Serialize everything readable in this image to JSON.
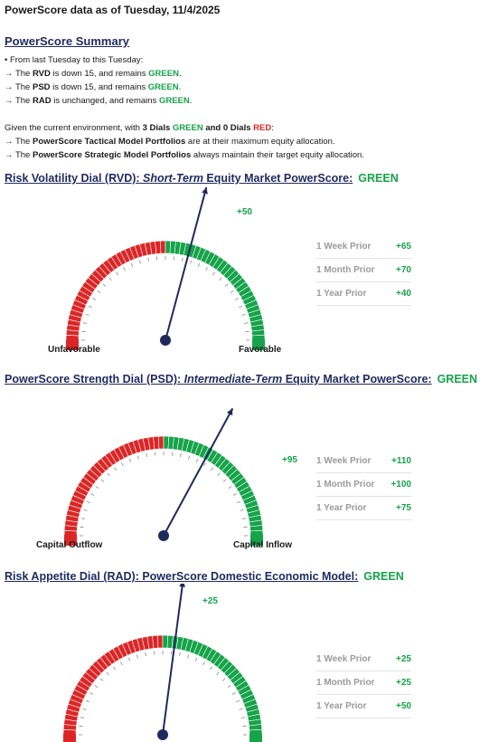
{
  "header": {
    "title": "PowerScore data as of Tuesday, 11/4/2025"
  },
  "summary": {
    "title": "PowerScore Summary",
    "bullet": "• From last Tuesday to this Tuesday:",
    "changes": [
      {
        "pre": "→ The ",
        "dial": "RVD",
        "mid": " is down 15, and remains ",
        "status": "GREEN",
        "post": "."
      },
      {
        "pre": "→ The ",
        "dial": "PSD",
        "mid": " is down 15, and remains ",
        "status": "GREEN",
        "post": "."
      },
      {
        "pre": "→ The ",
        "dial": "RAD",
        "mid": " is unchanged, and remains ",
        "status": "GREEN",
        "post": "."
      }
    ],
    "env_pre": "Given the current environment, with ",
    "env_green_count": "3 Dials ",
    "env_green": "GREEN",
    "env_and": " and ",
    "env_red_count": "0 Dials ",
    "env_red": "RED",
    "env_post": ":",
    "portfolios": [
      {
        "pre": "→ The ",
        "name": "PowerScore Tactical Model Portfolios",
        "post": " are at their maximum equity allocation."
      },
      {
        "pre": "→ The ",
        "name": "PowerScore Strategic Model Portfolios",
        "post": " always maintain their target equity allocation."
      }
    ]
  },
  "dials": [
    {
      "heading_pre": "Risk Volatility Dial (RVD):  ",
      "heading_italic": "Short-Term",
      "heading_post": " Equity Market PowerScore:",
      "status": "GREEN",
      "value": 50,
      "value_label": "+50",
      "left_label": "Unfavorable",
      "right_label": "Favorable",
      "priors": [
        {
          "label": "1 Week Prior",
          "value": "+65"
        },
        {
          "label": "1 Month Prior",
          "value": "+70"
        },
        {
          "label": "1 Year Prior",
          "value": "+40"
        }
      ]
    },
    {
      "heading_pre": "PowerScore Strength Dial (PSD): ",
      "heading_italic": "Intermediate-Term",
      "heading_post": " Equity Market PowerScore:",
      "status": "GREEN",
      "value": 95,
      "value_label": "+95",
      "left_label": "Capital Outflow",
      "right_label": "Capital Inflow",
      "priors": [
        {
          "label": "1 Week Prior",
          "value": "+110"
        },
        {
          "label": "1 Month Prior",
          "value": "+100"
        },
        {
          "label": "1 Year Prior",
          "value": "+75"
        }
      ]
    },
    {
      "heading_pre": "Risk Appetite Dial (RAD):  PowerScore Domestic Economic Model:",
      "heading_italic": "",
      "heading_post": "",
      "status": "GREEN",
      "value": 25,
      "value_label": "+25",
      "left_label": "",
      "right_label": "",
      "priors": [
        {
          "label": "1 Week Prior",
          "value": "+25"
        },
        {
          "label": "1 Month Prior",
          "value": "+25"
        },
        {
          "label": "1 Year Prior",
          "value": "+50"
        }
      ]
    }
  ],
  "colors": {
    "green": "#16a34a",
    "red": "#dc2626",
    "navy": "#1f2a5c"
  }
}
